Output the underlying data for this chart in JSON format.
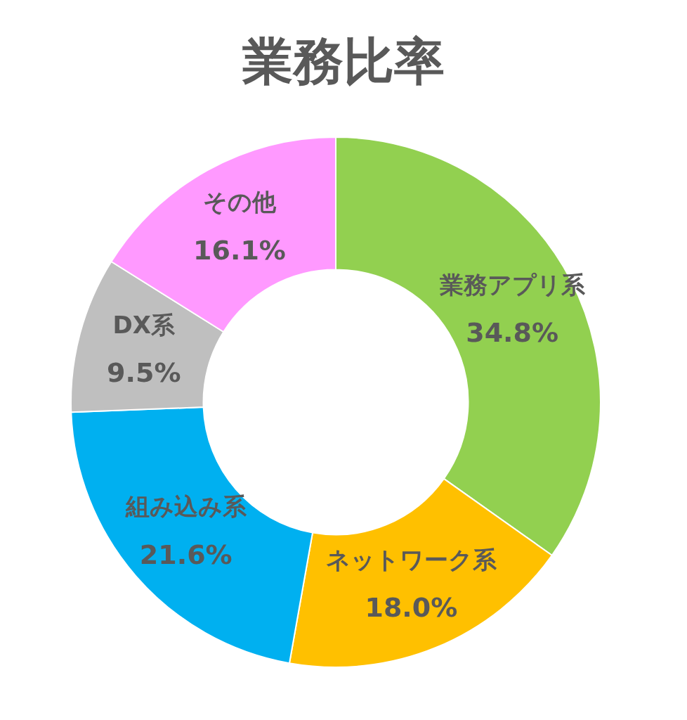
{
  "chart_data": {
    "type": "donut",
    "title": "業務比率",
    "categories": [
      "業務アプリ系",
      "ネットワーク系",
      "組み込み系",
      "DX系",
      "その他"
    ],
    "values": [
      34.8,
      18.0,
      21.6,
      9.5,
      16.1
    ],
    "value_labels": [
      "34.8%",
      "18.0%",
      "21.6%",
      "9.5%",
      "16.1%"
    ],
    "colors": [
      "#92d050",
      "#ffc000",
      "#00b0f0",
      "#bfbfbf",
      "#ff99ff"
    ],
    "legend": false
  }
}
